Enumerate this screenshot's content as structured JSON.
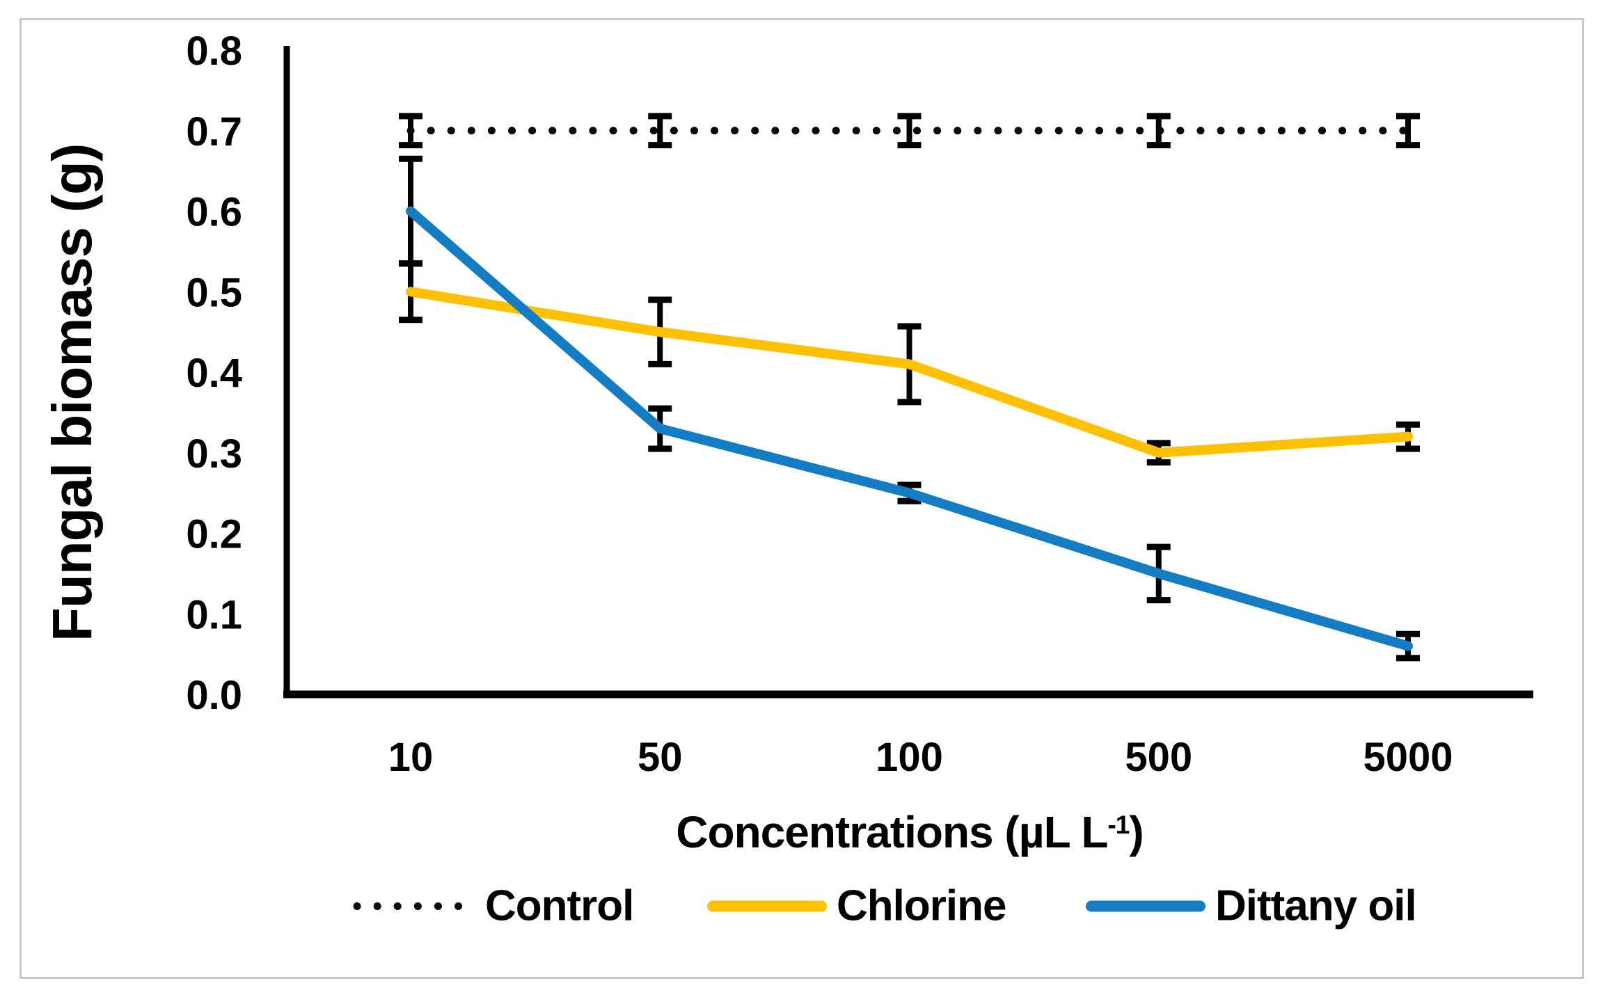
{
  "figure": {
    "y_axis_title": "Fungal biomass (g)",
    "x_axis_title": {
      "base": "Concentrations (µL L",
      "superscript": "-1",
      "suffix": ")"
    }
  },
  "chart_data": {
    "type": "line",
    "title": "",
    "xlabel": "Concentrations (µL L-1)",
    "ylabel": "Fungal biomass (g)",
    "categories": [
      "10",
      "50",
      "100",
      "500",
      "5000"
    ],
    "y_ticks": [
      "0.0",
      "0.1",
      "0.2",
      "0.3",
      "0.4",
      "0.5",
      "0.6",
      "0.7",
      "0.8"
    ],
    "ylim": [
      0,
      0.8
    ],
    "grid": false,
    "legend_position": "bottom",
    "axis_color": "#000000",
    "series": [
      {
        "name": "Control",
        "style": "dotted",
        "color": "#0a0a0a",
        "values": [
          0.7,
          0.7,
          0.7,
          0.7,
          0.7
        ],
        "errors": [
          0.018,
          0.018,
          0.018,
          0.018,
          0.018
        ]
      },
      {
        "name": "Chlorine",
        "style": "solid",
        "color": "#FFC000",
        "values": [
          0.5,
          0.45,
          0.41,
          0.3,
          0.32
        ],
        "errors": [
          0.035,
          0.04,
          0.047,
          0.012,
          0.015
        ]
      },
      {
        "name": "Dittany oil",
        "style": "solid",
        "color": "#147CC2",
        "values": [
          0.6,
          0.33,
          0.25,
          0.15,
          0.06
        ],
        "errors": [
          0.065,
          0.025,
          0.01,
          0.033,
          0.015
        ]
      }
    ]
  }
}
